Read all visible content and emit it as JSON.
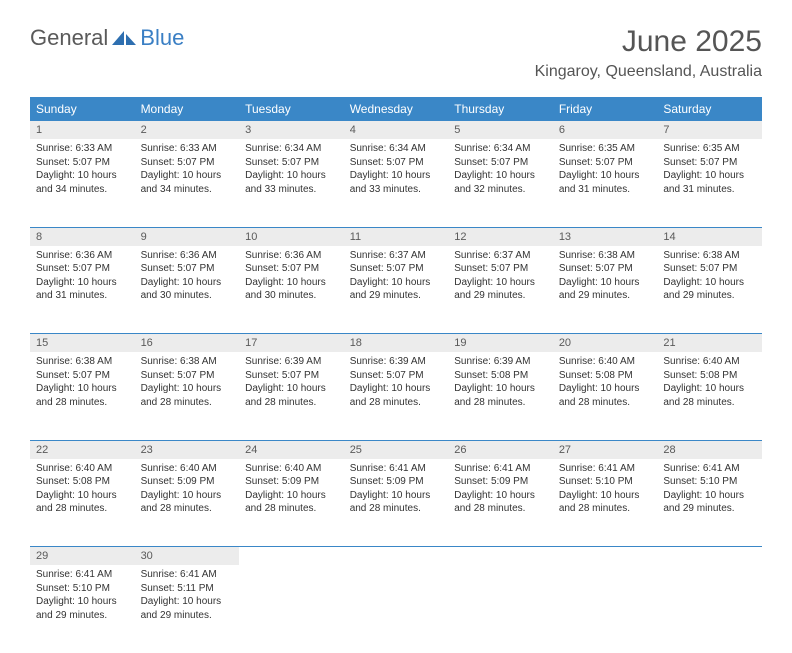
{
  "brand": {
    "part1": "General",
    "part2": "Blue"
  },
  "title": "June 2025",
  "location": "Kingaroy, Queensland, Australia",
  "colors": {
    "header_bg": "#3a87c7",
    "header_fg": "#ffffff",
    "daynum_bg": "#ececec",
    "text": "#333333",
    "rule": "#3a87c7",
    "brand_gray": "#5a5a5a",
    "brand_blue": "#3a7fc4"
  },
  "weekdays": [
    "Sunday",
    "Monday",
    "Tuesday",
    "Wednesday",
    "Thursday",
    "Friday",
    "Saturday"
  ],
  "weeks": [
    [
      {
        "n": "1",
        "sr": "6:33 AM",
        "ss": "5:07 PM",
        "dl": "10 hours and 34 minutes."
      },
      {
        "n": "2",
        "sr": "6:33 AM",
        "ss": "5:07 PM",
        "dl": "10 hours and 34 minutes."
      },
      {
        "n": "3",
        "sr": "6:34 AM",
        "ss": "5:07 PM",
        "dl": "10 hours and 33 minutes."
      },
      {
        "n": "4",
        "sr": "6:34 AM",
        "ss": "5:07 PM",
        "dl": "10 hours and 33 minutes."
      },
      {
        "n": "5",
        "sr": "6:34 AM",
        "ss": "5:07 PM",
        "dl": "10 hours and 32 minutes."
      },
      {
        "n": "6",
        "sr": "6:35 AM",
        "ss": "5:07 PM",
        "dl": "10 hours and 31 minutes."
      },
      {
        "n": "7",
        "sr": "6:35 AM",
        "ss": "5:07 PM",
        "dl": "10 hours and 31 minutes."
      }
    ],
    [
      {
        "n": "8",
        "sr": "6:36 AM",
        "ss": "5:07 PM",
        "dl": "10 hours and 31 minutes."
      },
      {
        "n": "9",
        "sr": "6:36 AM",
        "ss": "5:07 PM",
        "dl": "10 hours and 30 minutes."
      },
      {
        "n": "10",
        "sr": "6:36 AM",
        "ss": "5:07 PM",
        "dl": "10 hours and 30 minutes."
      },
      {
        "n": "11",
        "sr": "6:37 AM",
        "ss": "5:07 PM",
        "dl": "10 hours and 29 minutes."
      },
      {
        "n": "12",
        "sr": "6:37 AM",
        "ss": "5:07 PM",
        "dl": "10 hours and 29 minutes."
      },
      {
        "n": "13",
        "sr": "6:38 AM",
        "ss": "5:07 PM",
        "dl": "10 hours and 29 minutes."
      },
      {
        "n": "14",
        "sr": "6:38 AM",
        "ss": "5:07 PM",
        "dl": "10 hours and 29 minutes."
      }
    ],
    [
      {
        "n": "15",
        "sr": "6:38 AM",
        "ss": "5:07 PM",
        "dl": "10 hours and 28 minutes."
      },
      {
        "n": "16",
        "sr": "6:38 AM",
        "ss": "5:07 PM",
        "dl": "10 hours and 28 minutes."
      },
      {
        "n": "17",
        "sr": "6:39 AM",
        "ss": "5:07 PM",
        "dl": "10 hours and 28 minutes."
      },
      {
        "n": "18",
        "sr": "6:39 AM",
        "ss": "5:07 PM",
        "dl": "10 hours and 28 minutes."
      },
      {
        "n": "19",
        "sr": "6:39 AM",
        "ss": "5:08 PM",
        "dl": "10 hours and 28 minutes."
      },
      {
        "n": "20",
        "sr": "6:40 AM",
        "ss": "5:08 PM",
        "dl": "10 hours and 28 minutes."
      },
      {
        "n": "21",
        "sr": "6:40 AM",
        "ss": "5:08 PM",
        "dl": "10 hours and 28 minutes."
      }
    ],
    [
      {
        "n": "22",
        "sr": "6:40 AM",
        "ss": "5:08 PM",
        "dl": "10 hours and 28 minutes."
      },
      {
        "n": "23",
        "sr": "6:40 AM",
        "ss": "5:09 PM",
        "dl": "10 hours and 28 minutes."
      },
      {
        "n": "24",
        "sr": "6:40 AM",
        "ss": "5:09 PM",
        "dl": "10 hours and 28 minutes."
      },
      {
        "n": "25",
        "sr": "6:41 AM",
        "ss": "5:09 PM",
        "dl": "10 hours and 28 minutes."
      },
      {
        "n": "26",
        "sr": "6:41 AM",
        "ss": "5:09 PM",
        "dl": "10 hours and 28 minutes."
      },
      {
        "n": "27",
        "sr": "6:41 AM",
        "ss": "5:10 PM",
        "dl": "10 hours and 28 minutes."
      },
      {
        "n": "28",
        "sr": "6:41 AM",
        "ss": "5:10 PM",
        "dl": "10 hours and 29 minutes."
      }
    ],
    [
      {
        "n": "29",
        "sr": "6:41 AM",
        "ss": "5:10 PM",
        "dl": "10 hours and 29 minutes."
      },
      {
        "n": "30",
        "sr": "6:41 AM",
        "ss": "5:11 PM",
        "dl": "10 hours and 29 minutes."
      },
      null,
      null,
      null,
      null,
      null
    ]
  ],
  "labels": {
    "sunrise": "Sunrise:",
    "sunset": "Sunset:",
    "daylight": "Daylight:"
  }
}
